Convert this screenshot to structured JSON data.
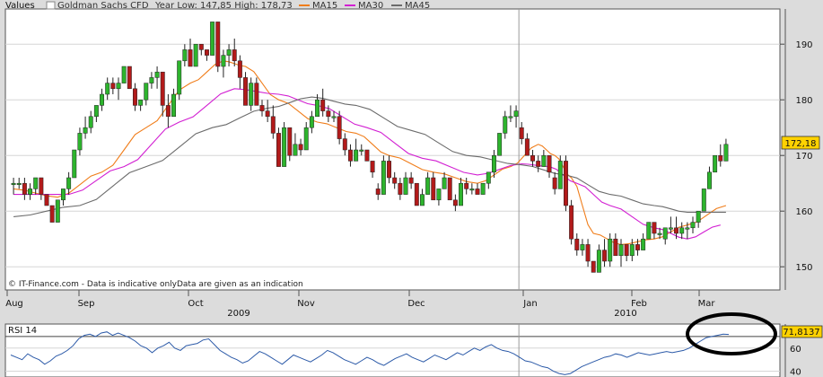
{
  "legend": {
    "values_label": "Values",
    "instrument": "Goldman Sachs CFD",
    "year_range": "Year Low: 147,85 High: 178,73",
    "ma15": "MA15",
    "ma30": "MA30",
    "ma45": "MA45"
  },
  "colors": {
    "background_panel": "#ffffff",
    "up": "#2db42d",
    "down": "#b21a1a",
    "ma15": "#f07d1a",
    "ma30": "#d21fd2",
    "ma45": "#6b6b6b",
    "rsi": "#2c5aa8",
    "price_box": "#ffd200",
    "annotation": "#000000"
  },
  "copyright": "© IT-Finance.com - Data is indicative onlyData are given as an indication",
  "last_price": "172,18",
  "rsi_label": "RSI 14",
  "rsi_last": "71,8137",
  "years": [
    "2009",
    "2010"
  ],
  "chart_data": [
    {
      "type": "candlestick",
      "title": "Goldman Sachs CFD",
      "y_ticks": [
        "150",
        "160",
        "170",
        "180",
        "190"
      ],
      "ylim": [
        146,
        196
      ],
      "x_ticks": [
        "Aug",
        "Sep",
        "Oct",
        "Nov",
        "Dec",
        "Jan",
        "Feb",
        "Mar"
      ],
      "grid": true,
      "candles": [
        [
          165,
          166,
          163,
          165
        ],
        [
          165,
          166,
          164,
          165
        ],
        [
          165,
          166,
          162,
          163
        ],
        [
          163,
          165,
          162,
          164
        ],
        [
          164,
          166,
          163,
          166
        ],
        [
          166,
          166,
          162,
          163
        ],
        [
          163,
          163,
          161,
          161
        ],
        [
          161,
          161,
          158,
          158
        ],
        [
          158,
          162,
          158,
          162
        ],
        [
          162,
          164,
          161,
          164
        ],
        [
          164,
          167,
          163,
          166
        ],
        [
          166,
          171,
          166,
          171
        ],
        [
          171,
          175,
          170,
          174
        ],
        [
          174,
          177,
          173,
          175
        ],
        [
          175,
          178,
          174,
          177
        ],
        [
          177,
          179,
          176,
          179
        ],
        [
          179,
          182,
          178,
          181
        ],
        [
          181,
          184,
          180,
          183
        ],
        [
          183,
          184,
          181,
          182
        ],
        [
          182,
          184,
          180,
          183
        ],
        [
          183,
          186,
          183,
          186
        ],
        [
          186,
          186,
          182,
          182
        ],
        [
          182,
          183,
          178,
          179
        ],
        [
          179,
          180,
          178,
          180
        ],
        [
          180,
          183,
          179,
          183
        ],
        [
          183,
          185,
          182,
          184
        ],
        [
          184,
          186,
          182,
          185
        ],
        [
          185,
          185,
          177,
          179
        ],
        [
          179,
          181,
          175,
          177
        ],
        [
          177,
          182,
          177,
          181
        ],
        [
          181,
          187,
          180,
          187
        ],
        [
          187,
          190,
          186,
          189
        ],
        [
          189,
          191,
          186,
          186
        ],
        [
          186,
          190,
          186,
          190
        ],
        [
          190,
          190,
          188,
          189
        ],
        [
          189,
          189,
          187,
          188
        ],
        [
          188,
          194,
          188,
          194
        ],
        [
          194,
          194,
          185,
          186
        ],
        [
          186,
          189,
          184,
          188
        ],
        [
          188,
          190,
          186,
          189
        ],
        [
          189,
          191,
          186,
          187
        ],
        [
          187,
          188,
          182,
          184
        ],
        [
          184,
          185,
          179,
          179
        ],
        [
          179,
          184,
          178,
          183
        ],
        [
          183,
          184,
          179,
          179
        ],
        [
          179,
          180,
          177,
          178
        ],
        [
          178,
          180,
          176,
          177
        ],
        [
          177,
          179,
          173,
          174
        ],
        [
          174,
          175,
          168,
          168
        ],
        [
          168,
          176,
          168,
          175
        ],
        [
          175,
          175,
          169,
          170
        ],
        [
          170,
          174,
          170,
          172
        ],
        [
          172,
          173,
          170,
          171
        ],
        [
          171,
          176,
          171,
          175
        ],
        [
          175,
          178,
          174,
          177
        ],
        [
          177,
          181,
          177,
          180
        ],
        [
          180,
          182,
          177,
          178
        ],
        [
          178,
          179,
          176,
          177
        ],
        [
          177,
          178,
          176,
          177
        ],
        [
          177,
          178,
          172,
          173
        ],
        [
          173,
          174,
          170,
          171
        ],
        [
          171,
          172,
          168,
          169
        ],
        [
          169,
          173,
          169,
          171
        ],
        [
          171,
          172,
          170,
          171
        ],
        [
          171,
          171,
          169,
          169
        ],
        [
          169,
          169,
          166,
          167
        ],
        [
          164,
          165,
          162,
          163
        ],
        [
          163,
          170,
          163,
          169
        ],
        [
          169,
          170,
          165,
          166
        ],
        [
          166,
          167,
          164,
          165
        ],
        [
          165,
          166,
          162,
          163
        ],
        [
          163,
          167,
          163,
          166
        ],
        [
          166,
          167,
          164,
          165
        ],
        [
          165,
          165,
          161,
          161
        ],
        [
          161,
          164,
          161,
          163
        ],
        [
          163,
          167,
          163,
          166
        ],
        [
          166,
          167,
          162,
          162
        ],
        [
          162,
          164,
          161,
          164
        ],
        [
          164,
          167,
          164,
          166
        ],
        [
          166,
          166,
          162,
          162
        ],
        [
          162,
          163,
          160,
          161
        ],
        [
          161,
          166,
          161,
          165
        ],
        [
          165,
          166,
          163,
          164
        ],
        [
          164,
          165,
          163,
          164
        ],
        [
          164,
          165,
          163,
          163
        ],
        [
          163,
          165,
          163,
          165
        ],
        [
          165,
          167,
          164,
          167
        ],
        [
          167,
          171,
          166,
          170
        ],
        [
          170,
          174,
          170,
          174
        ],
        [
          174,
          178,
          173,
          177
        ],
        [
          177,
          179,
          176,
          177
        ],
        [
          177,
          179,
          175,
          178
        ],
        [
          175,
          176,
          172,
          173
        ],
        [
          173,
          174,
          170,
          170
        ],
        [
          170,
          171,
          168,
          169
        ],
        [
          169,
          170,
          167,
          168
        ],
        [
          168,
          171,
          168,
          170
        ],
        [
          170,
          170,
          166,
          167
        ],
        [
          166,
          167,
          163,
          164
        ],
        [
          164,
          170,
          164,
          169
        ],
        [
          169,
          170,
          160,
          161
        ],
        [
          161,
          162,
          154,
          155
        ],
        [
          155,
          156,
          152,
          153
        ],
        [
          153,
          155,
          152,
          154
        ],
        [
          154,
          155,
          150,
          151
        ],
        [
          151,
          151,
          149,
          149
        ],
        [
          149,
          154,
          149,
          153
        ],
        [
          153,
          155,
          150,
          151
        ],
        [
          151,
          156,
          150,
          155
        ],
        [
          155,
          156,
          152,
          152
        ],
        [
          152,
          155,
          150,
          154
        ],
        [
          154,
          154,
          151,
          152
        ],
        [
          152,
          155,
          151,
          154
        ],
        [
          154,
          155,
          152,
          153
        ],
        [
          153,
          156,
          153,
          155
        ],
        [
          155,
          158,
          155,
          158
        ],
        [
          158,
          158,
          155,
          156
        ],
        [
          156,
          157,
          155,
          156
        ],
        [
          155,
          157,
          154,
          157
        ],
        [
          157,
          159,
          156,
          157
        ],
        [
          157,
          159,
          155,
          156
        ],
        [
          156,
          158,
          155,
          157
        ],
        [
          157,
          158,
          155,
          157
        ],
        [
          157,
          159,
          156,
          158
        ],
        [
          158,
          160,
          157,
          160
        ],
        [
          160,
          164,
          160,
          164
        ],
        [
          164,
          168,
          164,
          167
        ],
        [
          167,
          170,
          167,
          170
        ],
        [
          170,
          172,
          168,
          169
        ],
        [
          169,
          173,
          169,
          172
        ]
      ],
      "ma15": [
        [
          0,
          164
        ],
        [
          8,
          162.5
        ],
        [
          16,
          167
        ],
        [
          24,
          175
        ],
        [
          32,
          183
        ],
        [
          38,
          187
        ],
        [
          42,
          186
        ],
        [
          48,
          180
        ],
        [
          55,
          176
        ],
        [
          62,
          174
        ],
        [
          68,
          170
        ],
        [
          76,
          167
        ],
        [
          84,
          165
        ],
        [
          90,
          168
        ],
        [
          95,
          172
        ],
        [
          98,
          170
        ],
        [
          101,
          166
        ],
        [
          105,
          156
        ],
        [
          110,
          154
        ],
        [
          116,
          155
        ],
        [
          122,
          157.5
        ],
        [
          129,
          161
        ]
      ],
      "ma30": [
        [
          0,
          163
        ],
        [
          10,
          163
        ],
        [
          20,
          168
        ],
        [
          30,
          176
        ],
        [
          40,
          182
        ],
        [
          48,
          181
        ],
        [
          55,
          179
        ],
        [
          64,
          175
        ],
        [
          74,
          169.5
        ],
        [
          84,
          166.5
        ],
        [
          92,
          168.5
        ],
        [
          97,
          168
        ],
        [
          102,
          165
        ],
        [
          108,
          161
        ],
        [
          116,
          157
        ],
        [
          122,
          155
        ],
        [
          128,
          157.5
        ]
      ],
      "ma45": [
        [
          0,
          159
        ],
        [
          12,
          161
        ],
        [
          24,
          168
        ],
        [
          36,
          175
        ],
        [
          46,
          178.5
        ],
        [
          54,
          180.5
        ],
        [
          62,
          179
        ],
        [
          72,
          174.5
        ],
        [
          82,
          170
        ],
        [
          92,
          168.3
        ],
        [
          100,
          166.5
        ],
        [
          108,
          163
        ],
        [
          116,
          161
        ],
        [
          122,
          159.8
        ],
        [
          129,
          159.8
        ]
      ]
    },
    {
      "type": "line",
      "title": "RSI 14",
      "y_ticks": [
        "40",
        "60"
      ],
      "ylim": [
        35,
        80
      ],
      "values": [
        54,
        52,
        50,
        55,
        52,
        50,
        46,
        49,
        53,
        55,
        58,
        62,
        68,
        71,
        72,
        70,
        73,
        74,
        71,
        73,
        71,
        69,
        66,
        62,
        60,
        56,
        60,
        62,
        65,
        60,
        58,
        62,
        63,
        64,
        67,
        68,
        63,
        58,
        55,
        52,
        50,
        47,
        49,
        53,
        57,
        55,
        52,
        49,
        46,
        50,
        54,
        52,
        50,
        48,
        51,
        54,
        58,
        56,
        53,
        50,
        48,
        46,
        49,
        52,
        50,
        47,
        45,
        48,
        51,
        53,
        55,
        52,
        50,
        48,
        51,
        54,
        52,
        50,
        53,
        56,
        54,
        57,
        60,
        58,
        61,
        63,
        60,
        58,
        57,
        55,
        52,
        49,
        48,
        46,
        44,
        43,
        40,
        38,
        37,
        38,
        41,
        44,
        46,
        48,
        50,
        52,
        53,
        55,
        54,
        52,
        54,
        56,
        55,
        54,
        55,
        56,
        57,
        56,
        57,
        58,
        60,
        63,
        66,
        69,
        70,
        71,
        72,
        71.8
      ]
    }
  ]
}
